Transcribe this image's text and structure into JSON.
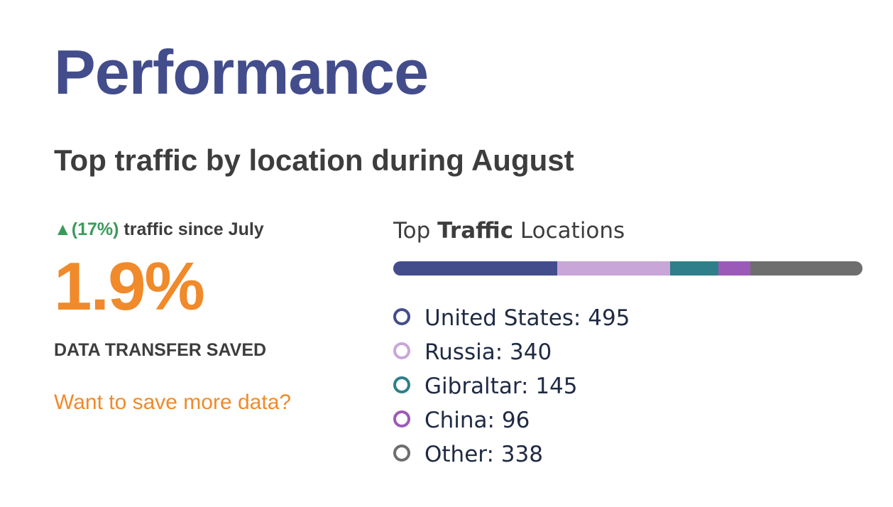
{
  "page": {
    "title": "Performance"
  },
  "section": {
    "heading": "Top traffic by location during August"
  },
  "stats": {
    "trend_arrow": "▲",
    "trend_percent": "(17%)",
    "trend_text": " traffic since July",
    "big_value": "1.9%",
    "caption": "DATA TRANSFER SAVED",
    "cta_label": "Want to save more data?"
  },
  "chart": {
    "title_prefix": "Top ",
    "title_bold": "Traffic",
    "title_suffix": " Locations"
  },
  "chart_data": {
    "type": "bar",
    "title": "Top Traffic Locations",
    "orientation": "horizontal-stacked",
    "legend_position": "bottom-left",
    "total": 1414,
    "series": [
      {
        "name": "United States",
        "value": 495,
        "label": "United States: 495",
        "color": "#434d8c"
      },
      {
        "name": "Russia",
        "value": 340,
        "label": "Russia: 340",
        "color": "#c9a6d8"
      },
      {
        "name": "Gibraltar",
        "value": 145,
        "label": "Gibraltar: 145",
        "color": "#2e7f8a"
      },
      {
        "name": "China",
        "value": 96,
        "label": "China: 96",
        "color": "#9c5ab8"
      },
      {
        "name": "Other",
        "value": 338,
        "label": "Other: 338",
        "color": "#6e6e6e"
      }
    ]
  },
  "colors": {
    "title": "#434d8c",
    "text": "#3d3d3d",
    "accent": "#f08a2a",
    "trend_up": "#3a9a5b"
  }
}
